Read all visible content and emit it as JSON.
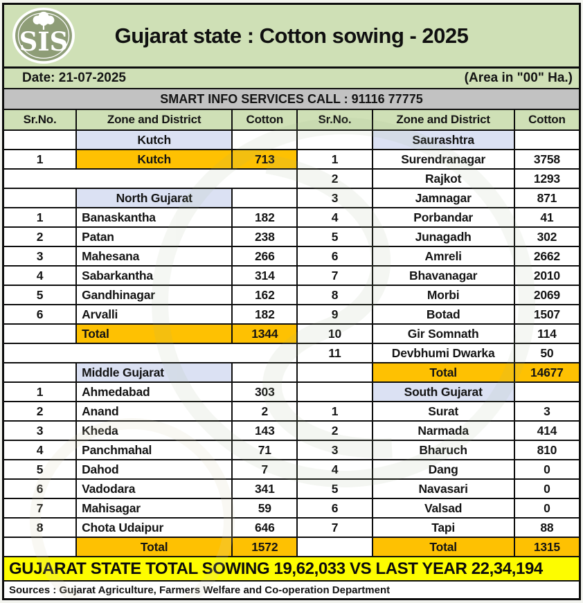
{
  "header": {
    "logo_text": "SIS",
    "title": "Gujarat state : Cotton sowing - 2025"
  },
  "info_bar": {
    "date_label": "Date: 21-07-2025",
    "area_note": "(Area in \"00\" Ha.)"
  },
  "service_bar": {
    "text": "SMART INFO SERVICES CALL : 91116 77775"
  },
  "table": {
    "columns": [
      "Sr.No.",
      "Zone and District",
      "Cotton",
      "Sr.No.",
      "Zone and District",
      "Cotton"
    ],
    "rows": [
      {
        "left": {
          "style": "zone",
          "name": "Kutch",
          "align": "center"
        },
        "right": {
          "style": "zone",
          "name": "Saurashtra",
          "align": "center"
        }
      },
      {
        "left": {
          "style": "highlight",
          "sr": "1",
          "name": "Kutch",
          "value": "713",
          "align": "center"
        },
        "right": {
          "style": "district",
          "sr": "1",
          "name": "Surendranagar",
          "value": "3758",
          "align": "center"
        }
      },
      {
        "left": {
          "style": "blank"
        },
        "right": {
          "style": "district",
          "sr": "2",
          "name": "Rajkot",
          "value": "1293",
          "align": "center"
        }
      },
      {
        "left": {
          "style": "zone",
          "name": "North Gujarat",
          "align": "center"
        },
        "right": {
          "style": "district",
          "sr": "3",
          "name": "Jamnagar",
          "value": "871",
          "align": "center"
        }
      },
      {
        "left": {
          "style": "district",
          "sr": "1",
          "name": "Banaskantha",
          "value": "182",
          "align": "left"
        },
        "right": {
          "style": "district",
          "sr": "4",
          "name": "Porbandar",
          "value": "41",
          "align": "center"
        }
      },
      {
        "left": {
          "style": "district",
          "sr": "2",
          "name": "Patan",
          "value": "238",
          "align": "left"
        },
        "right": {
          "style": "district",
          "sr": "5",
          "name": "Junagadh",
          "value": "302",
          "align": "center"
        }
      },
      {
        "left": {
          "style": "district",
          "sr": "3",
          "name": "Mahesana",
          "value": "266",
          "align": "left"
        },
        "right": {
          "style": "district",
          "sr": "6",
          "name": "Amreli",
          "value": "2662",
          "align": "center"
        }
      },
      {
        "left": {
          "style": "district",
          "sr": "4",
          "name": "Sabarkantha",
          "value": "314",
          "align": "left"
        },
        "right": {
          "style": "district",
          "sr": "7",
          "name": "Bhavanagar",
          "value": "2010",
          "align": "center"
        }
      },
      {
        "left": {
          "style": "district",
          "sr": "5",
          "name": "Gandhinagar",
          "value": "162",
          "align": "left"
        },
        "right": {
          "style": "district",
          "sr": "8",
          "name": "Morbi",
          "value": "2069",
          "align": "center"
        }
      },
      {
        "left": {
          "style": "district",
          "sr": "6",
          "name": "Arvalli",
          "value": "182",
          "align": "left"
        },
        "right": {
          "style": "district",
          "sr": "9",
          "name": "Botad",
          "value": "1507",
          "align": "center"
        }
      },
      {
        "left": {
          "style": "total",
          "name": "Total",
          "value": "1344",
          "align": "left"
        },
        "right": {
          "style": "district",
          "sr": "10",
          "name": "Gir Somnath",
          "value": "114",
          "align": "center"
        }
      },
      {
        "left": {
          "style": "blank"
        },
        "right": {
          "style": "district",
          "sr": "11",
          "name": "Devbhumi Dwarka",
          "value": "50",
          "align": "center"
        }
      },
      {
        "left": {
          "style": "zone",
          "name": "Middle Gujarat",
          "align": "left"
        },
        "right": {
          "style": "total",
          "name": "Total",
          "value": "14677",
          "align": "center"
        }
      },
      {
        "left": {
          "style": "district",
          "sr": "1",
          "name": "Ahmedabad",
          "value": "303",
          "align": "left"
        },
        "right": {
          "style": "zone",
          "name": "South Gujarat",
          "align": "center"
        }
      },
      {
        "left": {
          "style": "district",
          "sr": "2",
          "name": "Anand",
          "value": "2",
          "align": "left"
        },
        "right": {
          "style": "district",
          "sr": "1",
          "name": "Surat",
          "value": "3",
          "align": "center"
        }
      },
      {
        "left": {
          "style": "district",
          "sr": "3",
          "name": "Kheda",
          "value": "143",
          "align": "left"
        },
        "right": {
          "style": "district",
          "sr": "2",
          "name": "Narmada",
          "value": "414",
          "align": "center"
        }
      },
      {
        "left": {
          "style": "district",
          "sr": "4",
          "name": "Panchmahal",
          "value": "71",
          "align": "left"
        },
        "right": {
          "style": "district",
          "sr": "3",
          "name": "Bharuch",
          "value": "810",
          "align": "center"
        }
      },
      {
        "left": {
          "style": "district",
          "sr": "5",
          "name": "Dahod",
          "value": "7",
          "align": "left"
        },
        "right": {
          "style": "district",
          "sr": "4",
          "name": "Dang",
          "value": "0",
          "align": "center"
        }
      },
      {
        "left": {
          "style": "district",
          "sr": "6",
          "name": "Vadodara",
          "value": "341",
          "align": "left"
        },
        "right": {
          "style": "district",
          "sr": "5",
          "name": "Navasari",
          "value": "0",
          "align": "center"
        }
      },
      {
        "left": {
          "style": "district",
          "sr": "7",
          "name": "Mahisagar",
          "value": "59",
          "align": "left"
        },
        "right": {
          "style": "district",
          "sr": "6",
          "name": "Valsad",
          "value": "0",
          "align": "center"
        }
      },
      {
        "left": {
          "style": "district",
          "sr": "8",
          "name": "Chota Udaipur",
          "value": "646",
          "align": "left"
        },
        "right": {
          "style": "district",
          "sr": "7",
          "name": "Tapi",
          "value": "88",
          "align": "center"
        }
      },
      {
        "left": {
          "style": "total",
          "name": "Total",
          "value": "1572",
          "align": "center"
        },
        "right": {
          "style": "total",
          "name": "Total",
          "value": "1315",
          "align": "center"
        }
      }
    ]
  },
  "footer": {
    "total_banner": "GUJARAT STATE TOTAL SOWING 19,62,033 VS LAST YEAR 22,34,194",
    "sources": "Sources : Gujarat Agriculture, Farmers Welfare and Co-operation Department"
  },
  "colors": {
    "header_green": "#cfe0b6",
    "zone_lavender": "#dbe1f3",
    "accent_orange": "#fec102",
    "banner_yellow": "#fdfc00",
    "service_gray": "#c2c2c2",
    "logo_sage": "#8e9d77"
  }
}
